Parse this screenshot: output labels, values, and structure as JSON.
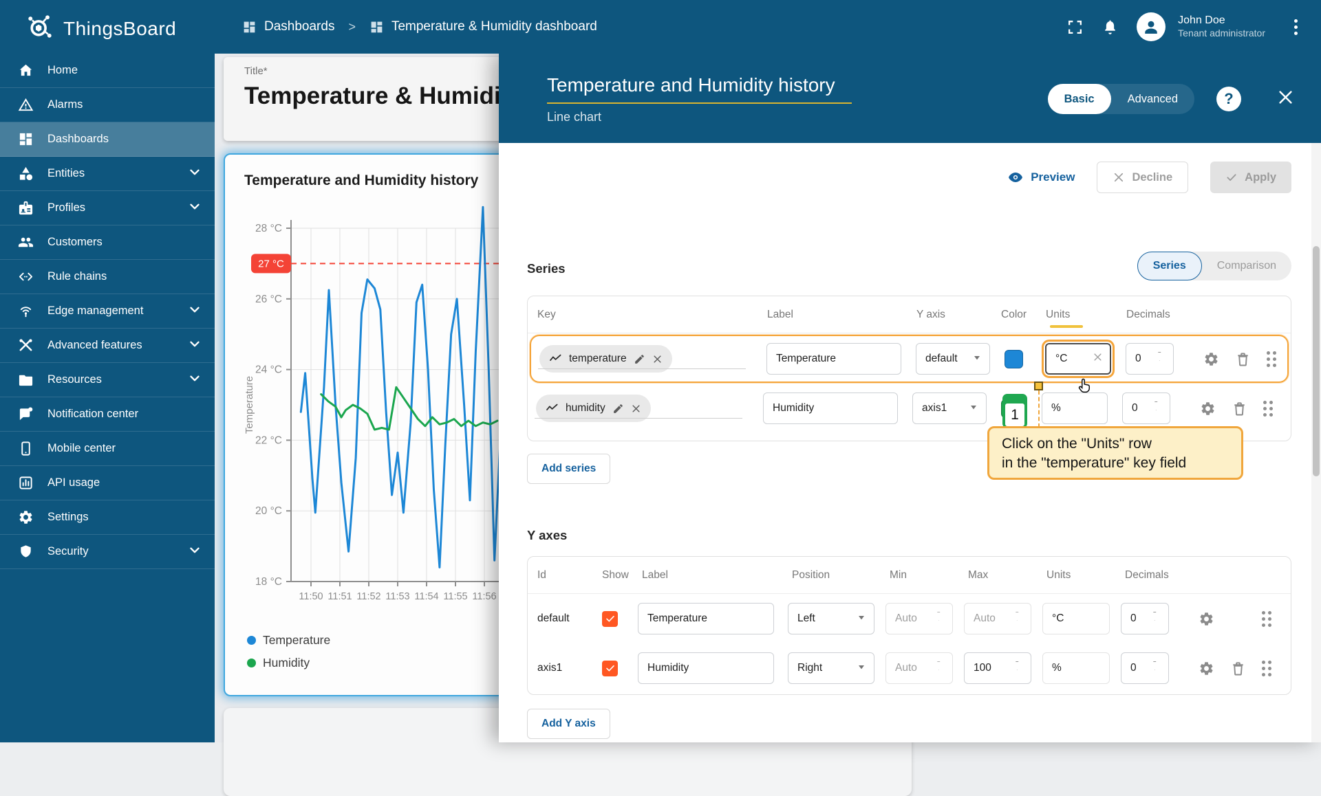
{
  "app": {
    "name": "ThingsBoard"
  },
  "header": {
    "breadcrumb": [
      {
        "label": "Dashboards",
        "icon": "dashboards-grid-icon"
      },
      {
        "label": "Temperature & Humidity dashboard",
        "icon": "dashboards-grid-icon"
      }
    ],
    "separator": ">",
    "icons": [
      "fullscreen-icon",
      "notifications-bell-icon"
    ],
    "user": {
      "name": "John Doe",
      "role": "Tenant administrator"
    }
  },
  "sidebar": {
    "items": [
      {
        "label": "Home",
        "icon": "home-icon",
        "selected": false,
        "expandable": false
      },
      {
        "label": "Alarms",
        "icon": "warning-triangle-icon",
        "selected": false,
        "expandable": false
      },
      {
        "label": "Dashboards",
        "icon": "dashboards-grid-icon",
        "selected": true,
        "expandable": false
      },
      {
        "label": "Entities",
        "icon": "shapes-icon",
        "selected": false,
        "expandable": true
      },
      {
        "label": "Profiles",
        "icon": "badge-icon",
        "selected": false,
        "expandable": true
      },
      {
        "label": "Customers",
        "icon": "people-icon",
        "selected": false,
        "expandable": false
      },
      {
        "label": "Rule chains",
        "icon": "code-brackets-icon",
        "selected": false,
        "expandable": false
      },
      {
        "label": "Edge management",
        "icon": "antenna-icon",
        "selected": false,
        "expandable": true
      },
      {
        "label": "Advanced features",
        "icon": "tools-icon",
        "selected": false,
        "expandable": true
      },
      {
        "label": "Resources",
        "icon": "folder-icon",
        "selected": false,
        "expandable": true
      },
      {
        "label": "Notification center",
        "icon": "message-icon",
        "selected": false,
        "expandable": false
      },
      {
        "label": "Mobile center",
        "icon": "phone-icon",
        "selected": false,
        "expandable": false
      },
      {
        "label": "API usage",
        "icon": "bar-chart-icon",
        "selected": false,
        "expandable": false
      },
      {
        "label": "Settings",
        "icon": "gear-icon",
        "selected": false,
        "expandable": false
      },
      {
        "label": "Security",
        "icon": "shield-icon",
        "selected": false,
        "expandable": true
      }
    ]
  },
  "dashboard": {
    "title_label": "Title*",
    "title_value": "Temperature & Humidity dashboard",
    "widget_title": "Temperature and Humidity history"
  },
  "chart_data": {
    "type": "line",
    "title": "Temperature and Humidity history",
    "ylabel": "Temperature",
    "x_unit": "minutes after 11:00",
    "y_axis": {
      "min": 18,
      "max": 28,
      "ticks": [
        28,
        26,
        24,
        22,
        20,
        18
      ],
      "tick_suffix": " °C"
    },
    "y2_axis": {
      "min": 0,
      "max": 100
    },
    "x_ticks": [
      {
        "t": 50,
        "label": "11:50"
      },
      {
        "t": 51,
        "label": "11:51"
      },
      {
        "t": 52,
        "label": "11:52"
      },
      {
        "t": 53,
        "label": "11:53"
      },
      {
        "t": 54,
        "label": "11:54"
      },
      {
        "t": 55,
        "label": "11:55"
      },
      {
        "t": 56,
        "label": "11:56"
      }
    ],
    "threshold": {
      "value": 27,
      "label": "27 °C",
      "color": "#f44336"
    },
    "legend_position": "bottom-left",
    "grid": true,
    "series": [
      {
        "name": "Temperature",
        "color": "#1d87d6",
        "axis": "y",
        "points": [
          [
            49.65,
            22.8
          ],
          [
            49.8,
            23.9
          ],
          [
            50.05,
            20.9
          ],
          [
            50.15,
            19.95
          ],
          [
            50.45,
            23.5
          ],
          [
            50.62,
            26.25
          ],
          [
            50.85,
            23.0
          ],
          [
            51.05,
            20.8
          ],
          [
            51.3,
            18.85
          ],
          [
            51.55,
            21.5
          ],
          [
            51.75,
            25.6
          ],
          [
            51.95,
            26.55
          ],
          [
            52.2,
            26.3
          ],
          [
            52.4,
            25.7
          ],
          [
            52.6,
            22.8
          ],
          [
            52.8,
            20.45
          ],
          [
            53.0,
            21.65
          ],
          [
            53.2,
            19.95
          ],
          [
            53.45,
            22.5
          ],
          [
            53.65,
            25.9
          ],
          [
            53.85,
            26.4
          ],
          [
            54.05,
            24.0
          ],
          [
            54.25,
            20.6
          ],
          [
            54.45,
            18.4
          ],
          [
            54.65,
            21.9
          ],
          [
            54.85,
            25.0
          ],
          [
            55.05,
            26.0
          ],
          [
            55.3,
            23.0
          ],
          [
            55.5,
            20.3
          ],
          [
            55.7,
            24.5
          ],
          [
            55.95,
            28.6
          ],
          [
            56.15,
            24.0
          ],
          [
            56.35,
            18.6
          ],
          [
            56.55,
            22.0
          ]
        ]
      },
      {
        "name": "Humidity",
        "color": "#1ba64e",
        "axis": "y2",
        "points": [
          [
            50.35,
            53
          ],
          [
            50.6,
            51
          ],
          [
            50.85,
            49.5
          ],
          [
            51.05,
            46.5
          ],
          [
            51.2,
            48.5
          ],
          [
            51.45,
            50
          ],
          [
            51.7,
            49
          ],
          [
            51.95,
            47.5
          ],
          [
            52.2,
            43
          ],
          [
            52.45,
            43.5
          ],
          [
            52.7,
            43
          ],
          [
            52.95,
            55
          ],
          [
            53.2,
            52
          ],
          [
            53.45,
            49
          ],
          [
            53.7,
            46
          ],
          [
            53.95,
            44
          ],
          [
            54.2,
            46.5
          ],
          [
            54.45,
            44.5
          ],
          [
            54.7,
            45
          ],
          [
            54.95,
            46
          ],
          [
            55.2,
            44
          ],
          [
            55.45,
            45.5
          ],
          [
            55.7,
            44
          ],
          [
            55.95,
            45
          ],
          [
            56.2,
            44.5
          ],
          [
            56.45,
            45.5
          ]
        ]
      }
    ]
  },
  "panel": {
    "title": "Temperature and Humidity history",
    "subtitle": "Line chart",
    "mode_toggle": {
      "options": [
        "Basic",
        "Advanced"
      ],
      "selected": "Basic"
    },
    "actions": {
      "preview": "Preview",
      "decline": "Decline",
      "apply": "Apply"
    },
    "series_section": {
      "heading": "Series",
      "view_toggle": {
        "options": [
          "Series",
          "Comparison"
        ],
        "selected": "Series"
      },
      "columns": [
        "Key",
        "Label",
        "Y axis",
        "Color",
        "Units",
        "Decimals"
      ],
      "rows": [
        {
          "key": "temperature",
          "label": "Temperature",
          "y_axis": "default",
          "color": "#1d87d6",
          "units": "°C",
          "decimals": "0"
        },
        {
          "key": "humidity",
          "label": "Humidity",
          "y_axis": "axis1",
          "color": "#1ba64e",
          "units": "%",
          "decimals": "0"
        }
      ],
      "add_button": "Add series"
    },
    "tutorial": {
      "step": "1",
      "line1": "Click on the \"Units\" row",
      "line2": "in the \"temperature\" key field"
    },
    "y_axes_section": {
      "heading": "Y axes",
      "columns": [
        "Id",
        "Show",
        "Label",
        "Position",
        "Min",
        "Max",
        "Units",
        "Decimals"
      ],
      "rows": [
        {
          "id": "default",
          "show": true,
          "label": "Temperature",
          "position": "Left",
          "min": "Auto",
          "max": "Auto",
          "units": "°C",
          "decimals": "0"
        },
        {
          "id": "axis1",
          "show": true,
          "label": "Humidity",
          "position": "Right",
          "min": "Auto",
          "max": "100",
          "units": "%",
          "decimals": "0"
        }
      ],
      "add_button": "Add Y axis"
    }
  },
  "colors": {
    "header_bg": "#0e567e",
    "accent": "#15619e",
    "tutorial_orange": "#f0a63c",
    "tooltip_bg": "#fdf0c8",
    "checkbox": "#ff5722",
    "threshold": "#f44336",
    "temp_series": "#1d87d6",
    "humidity_series": "#1ba64e",
    "title_underline": "#d9b430"
  }
}
